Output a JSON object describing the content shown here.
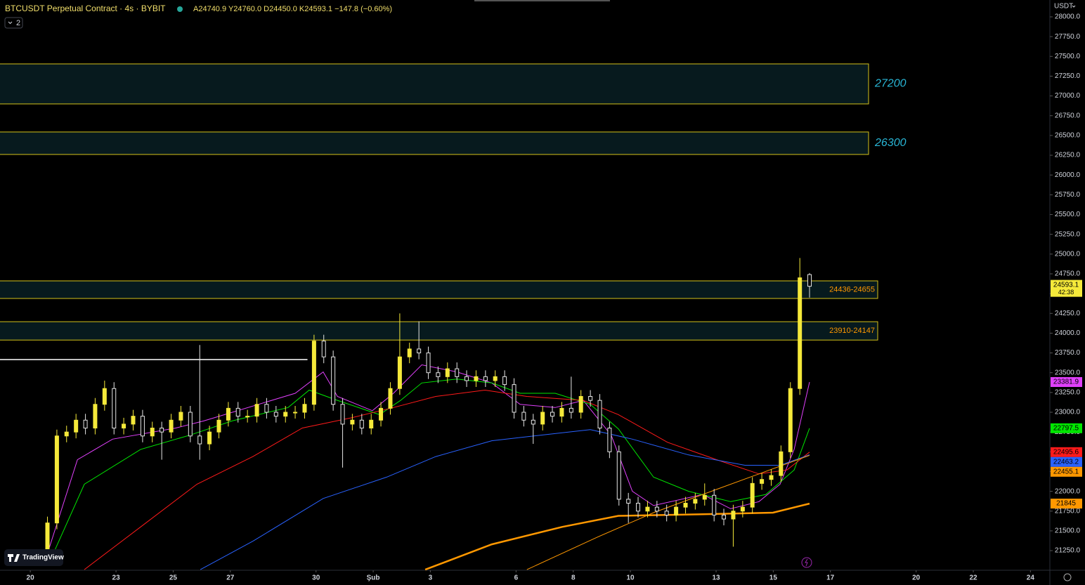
{
  "chart_data": {
    "type": "candlestick",
    "title": "BTCUSDT Perpetual Contract · 4s · BYBIT",
    "ohlc_legend": [
      "A24740.9",
      "Y24760.0",
      "D24450.0",
      "K24593.1",
      "−147.8 (−0.60%)"
    ],
    "indicator_count": "2",
    "currency": "USDT",
    "brand": "TradingView",
    "countdown": "42:38",
    "up_color": "#f5e93a",
    "down_color": "#e6e6e6",
    "xlim": [
      -1.06,
      35.68
    ],
    "ylim": [
      21002,
      28213
    ],
    "xticks": [
      {
        "value": 0,
        "label": "20"
      },
      {
        "value": 3,
        "label": "23"
      },
      {
        "value": 5,
        "label": "25"
      },
      {
        "value": 7,
        "label": "27"
      },
      {
        "value": 10,
        "label": "30"
      },
      {
        "value": 12,
        "label": "Şub"
      },
      {
        "value": 14,
        "label": "3"
      },
      {
        "value": 17,
        "label": "6"
      },
      {
        "value": 19,
        "label": "8"
      },
      {
        "value": 21,
        "label": "10"
      },
      {
        "value": 24,
        "label": "13"
      },
      {
        "value": 26,
        "label": "15"
      },
      {
        "value": 28,
        "label": "17"
      },
      {
        "value": 31,
        "label": "20"
      },
      {
        "value": 33,
        "label": "22"
      },
      {
        "value": 35,
        "label": "24"
      }
    ],
    "yticks": [
      {
        "value": 21250,
        "label": "21250.0"
      },
      {
        "value": 21500,
        "label": "21500.0"
      },
      {
        "value": 21750,
        "label": "21750.0"
      },
      {
        "value": 22000,
        "label": "22000.0"
      },
      {
        "value": 22250,
        "label": "22250.0"
      },
      {
        "value": 22500,
        "label": "22500.0"
      },
      {
        "value": 22750,
        "label": "22750.0"
      },
      {
        "value": 23000,
        "label": "23000.0"
      },
      {
        "value": 23250,
        "label": "23250.0"
      },
      {
        "value": 23500,
        "label": "23500.0"
      },
      {
        "value": 23750,
        "label": "23750.0"
      },
      {
        "value": 24000,
        "label": "24000.0"
      },
      {
        "value": 24250,
        "label": "24250.0"
      },
      {
        "value": 24500,
        "label": "24500.0"
      },
      {
        "value": 24750,
        "label": "24750.0"
      },
      {
        "value": 25000,
        "label": "25000.0"
      },
      {
        "value": 25250,
        "label": "25250.0"
      },
      {
        "value": 25500,
        "label": "25500.0"
      },
      {
        "value": 25750,
        "label": "25750.0"
      },
      {
        "value": 26000,
        "label": "26000.0"
      },
      {
        "value": 26250,
        "label": "26250.0"
      },
      {
        "value": 26500,
        "label": "26500.0"
      },
      {
        "value": 26750,
        "label": "26750.0"
      },
      {
        "value": 27000,
        "label": "27000.0"
      },
      {
        "value": 27250,
        "label": "27250.0"
      },
      {
        "value": 27500,
        "label": "27500.0"
      },
      {
        "value": 27750,
        "label": "27750.0"
      },
      {
        "value": 28000,
        "label": "28000.0"
      }
    ],
    "x": [
      0.6,
      0.93,
      1.27,
      1.6,
      1.93,
      2.27,
      2.6,
      2.93,
      3.27,
      3.6,
      3.93,
      4.27,
      4.6,
      4.93,
      5.27,
      5.6,
      5.93,
      6.27,
      6.6,
      6.93,
      7.27,
      7.6,
      7.93,
      8.27,
      8.6,
      8.93,
      9.27,
      9.6,
      9.93,
      10.27,
      10.6,
      10.93,
      11.27,
      11.6,
      11.93,
      12.27,
      12.6,
      12.93,
      13.27,
      13.6,
      13.93,
      14.27,
      14.6,
      14.93,
      15.27,
      15.6,
      15.93,
      16.27,
      16.6,
      16.93,
      17.27,
      17.6,
      17.93,
      18.27,
      18.6,
      18.93,
      19.27,
      19.6,
      19.93,
      20.27,
      20.6,
      20.93,
      21.27,
      21.6,
      21.93,
      22.27,
      22.6,
      22.93,
      23.27,
      23.6,
      23.93,
      24.27,
      24.6,
      24.93,
      25.27,
      25.6,
      25.93,
      26.27,
      26.6,
      26.93,
      27.27
    ],
    "open": [
      21250,
      21600,
      22700,
      22750,
      22900,
      22800,
      23100,
      23300,
      22800,
      22850,
      22950,
      22700,
      22800,
      22750,
      22900,
      23000,
      22700,
      22600,
      22750,
      22900,
      23050,
      22950,
      22950,
      23100,
      23000,
      22950,
      23000,
      23000,
      23100,
      23900,
      23700,
      23100,
      22850,
      22900,
      22800,
      22900,
      23050,
      23300,
      23700,
      23800,
      23750,
      23500,
      23450,
      23550,
      23450,
      23400,
      23450,
      23400,
      23450,
      23350,
      23000,
      22900,
      22850,
      23000,
      22950,
      23050,
      23000,
      23200,
      23150,
      22800,
      22500,
      21900,
      21850,
      21750,
      21800,
      21750,
      21700,
      21800,
      21850,
      21900,
      21950,
      21700,
      21650,
      21750,
      21800,
      22100,
      22150,
      22200,
      22500,
      23300,
      24740.9
    ],
    "high": [
      21680,
      22780,
      22830,
      22980,
      22980,
      23180,
      23400,
      23380,
      22930,
      23030,
      23030,
      22880,
      22880,
      22980,
      23080,
      23080,
      23850,
      22830,
      22980,
      23130,
      23130,
      23030,
      23180,
      23180,
      23080,
      23080,
      23080,
      23180,
      23980,
      23980,
      23780,
      23180,
      22980,
      22980,
      22980,
      23130,
      23380,
      24250,
      23880,
      24150,
      23830,
      23580,
      23630,
      23630,
      23530,
      23530,
      23530,
      23530,
      23530,
      23430,
      23080,
      22980,
      23080,
      23080,
      23130,
      23450,
      23280,
      23280,
      23230,
      22880,
      22580,
      21980,
      21930,
      21880,
      21880,
      21830,
      21880,
      21930,
      21980,
      22100,
      22030,
      21780,
      21830,
      21880,
      22180,
      22230,
      22280,
      22580,
      23380,
      24950,
      24760
    ],
    "low": [
      21150,
      21520,
      22620,
      22670,
      22720,
      22720,
      23020,
      22720,
      22720,
      22770,
      22620,
      22620,
      22400,
      22670,
      22820,
      22620,
      22400,
      22520,
      22670,
      22820,
      22870,
      22870,
      22870,
      22920,
      22870,
      22870,
      22920,
      22920,
      23020,
      23620,
      23020,
      22300,
      22770,
      22720,
      22720,
      22820,
      22970,
      23220,
      23620,
      23670,
      23420,
      23370,
      23370,
      23370,
      23320,
      23320,
      23320,
      23320,
      23270,
      22920,
      22820,
      22600,
      22770,
      22870,
      22870,
      22920,
      22920,
      23070,
      22720,
      22420,
      21820,
      21600,
      21670,
      21670,
      21670,
      21620,
      21620,
      21720,
      21770,
      21820,
      21620,
      21570,
      21300,
      21670,
      21720,
      22020,
      22070,
      22120,
      22420,
      23220,
      24450
    ],
    "close": [
      21600,
      22700,
      22750,
      22900,
      22800,
      23100,
      23300,
      22800,
      22850,
      22950,
      22700,
      22800,
      22750,
      22900,
      23000,
      22700,
      22600,
      22750,
      22900,
      23050,
      22950,
      22950,
      23100,
      23000,
      22950,
      23000,
      23000,
      23100,
      23900,
      23700,
      23100,
      22850,
      22900,
      22800,
      22900,
      23050,
      23300,
      23700,
      23800,
      23750,
      23500,
      23450,
      23550,
      23450,
      23400,
      23450,
      23400,
      23450,
      23350,
      23000,
      22900,
      22850,
      23000,
      22950,
      23050,
      23000,
      23200,
      23150,
      22800,
      22500,
      21900,
      21850,
      21750,
      21800,
      21750,
      21700,
      21800,
      21850,
      21900,
      21950,
      21700,
      21650,
      21750,
      21800,
      22100,
      22150,
      22200,
      22500,
      23300,
      24700,
      24593.1
    ],
    "series": [
      {
        "color": "#e040fb",
        "width": 1,
        "x": [
          0.66,
          1.65,
          2.88,
          5.09,
          6.07,
          9.27,
          10.25,
          10.75,
          11.97,
          12.71,
          13.7,
          14.93,
          16.15,
          17.14,
          18.37,
          19.35,
          20.33,
          21.07,
          21.81,
          23.53,
          24.51,
          25.5,
          26.24,
          26.73,
          27.27
        ],
        "values": [
          21280,
          22400,
          22660,
          22800,
          22890,
          23240,
          23510,
          23200,
          23020,
          23240,
          23600,
          23510,
          23370,
          23100,
          23060,
          23150,
          22710,
          22000,
          21820,
          21960,
          21780,
          21870,
          22090,
          22530,
          23381.9
        ]
      },
      {
        "color": "#00e600",
        "width": 1,
        "x": [
          0.79,
          1.89,
          3.86,
          5.58,
          7.06,
          9.02,
          9.76,
          10.75,
          12.22,
          12.96,
          13.7,
          14.93,
          16.15,
          17.14,
          18.37,
          19.6,
          20.58,
          21.81,
          23.04,
          24.51,
          25.74,
          26.73,
          27.27
        ],
        "values": [
          21200,
          22090,
          22530,
          22710,
          22890,
          23060,
          23280,
          23150,
          22970,
          23150,
          23370,
          23420,
          23370,
          23240,
          23240,
          23100,
          22790,
          22180,
          22000,
          21870,
          21960,
          22270,
          22797.5
        ]
      },
      {
        "color": "#ff1a1a",
        "width": 1,
        "x": [
          1.89,
          3.86,
          5.83,
          7.79,
          9.52,
          11.24,
          12.71,
          14.19,
          15.91,
          17.38,
          19.35,
          20.58,
          22.3,
          24.02,
          25.5,
          26.48,
          27.27
        ],
        "values": [
          21010,
          21550,
          22090,
          22440,
          22800,
          22930,
          23060,
          23200,
          23280,
          23200,
          23150,
          22970,
          22620,
          22400,
          22220,
          22270,
          22495.6
        ]
      },
      {
        "color": "#2962ff",
        "width": 1,
        "x": [
          5.95,
          7.79,
          10.25,
          12.47,
          14.19,
          16.15,
          18.12,
          19.6,
          21.07,
          23.04,
          25.01,
          26.24,
          27.27
        ],
        "values": [
          21010,
          21370,
          21910,
          22180,
          22440,
          22640,
          22720,
          22780,
          22660,
          22460,
          22330,
          22330,
          22463.2
        ]
      },
      {
        "color": "#ff9800",
        "width": 1,
        "x": [
          17.38,
          19.84,
          21.81,
          23.53,
          25.5,
          27.27
        ],
        "values": [
          21010,
          21420,
          21730,
          21960,
          22220,
          22455.1
        ]
      },
      {
        "color": "#ff9800",
        "width": 2.5,
        "x": [
          13.82,
          16.15,
          18.61,
          20.58,
          23.53,
          25.99,
          27.27
        ],
        "values": [
          21010,
          21330,
          21550,
          21690,
          21710,
          21730,
          21845.0
        ]
      }
    ],
    "zones": [
      {
        "low": 26899,
        "high": 27405,
        "label": "27200",
        "style": "outside"
      },
      {
        "low": 26260,
        "high": 26544,
        "label": "26300",
        "style": "outside"
      },
      {
        "low": 24439,
        "high": 24661,
        "label": "24436-24655",
        "style": "inside"
      },
      {
        "low": 23913,
        "high": 24145,
        "label": "23910-24147",
        "style": "inside"
      }
    ],
    "hline": {
      "value": 23666,
      "x_end": 9.7,
      "color": "#ffffff"
    }
  }
}
